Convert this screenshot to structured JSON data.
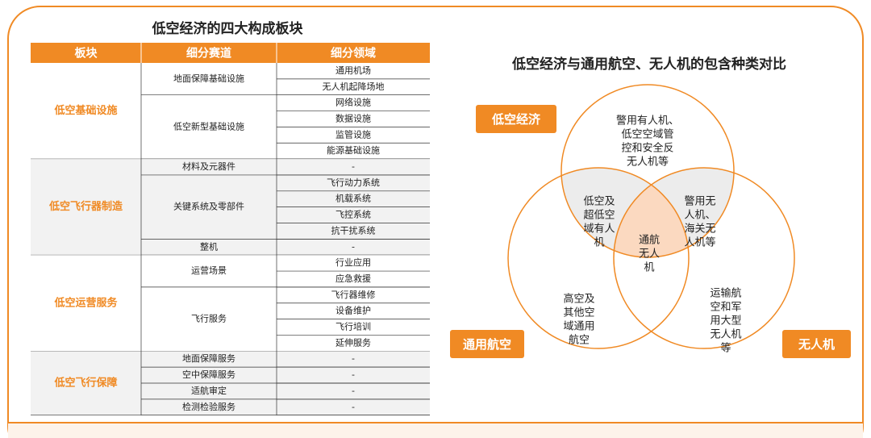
{
  "table_title": "低空经济的四大构成板块",
  "table": {
    "headers": [
      "板块",
      "细分赛道",
      "细分领域"
    ],
    "sections": [
      {
        "name": "低空基础设施",
        "subs": [
          {
            "name": "地面保障基础设施",
            "items": [
              "通用机场",
              "无人机起降场地"
            ]
          },
          {
            "name": "低空新型基础设施",
            "items": [
              "网络设施",
              "数据设施",
              "监管设施",
              "能源基础设施"
            ]
          }
        ]
      },
      {
        "name": "低空飞行器制造",
        "subs": [
          {
            "name": "材料及元器件",
            "items": [
              "-"
            ]
          },
          {
            "name": "关键系统及零部件",
            "items": [
              "飞行动力系统",
              "机载系统",
              "飞控系统",
              "抗干扰系统"
            ]
          },
          {
            "name": "整机",
            "items": [
              "-"
            ]
          }
        ]
      },
      {
        "name": "低空运营服务",
        "subs": [
          {
            "name": "运营场景",
            "items": [
              "行业应用",
              "应急救援"
            ]
          },
          {
            "name": "飞行服务",
            "items": [
              "飞行器维修",
              "设备维护",
              "飞行培训",
              "延伸服务"
            ]
          }
        ]
      },
      {
        "name": "低空飞行保障",
        "subs": [
          {
            "name": "地面保障服务",
            "items": [
              "-"
            ]
          },
          {
            "name": "空中保障服务",
            "items": [
              "-"
            ]
          },
          {
            "name": "适航审定",
            "items": [
              "-"
            ]
          },
          {
            "name": "检测检验服务",
            "items": [
              "-"
            ]
          }
        ]
      }
    ]
  },
  "venn_title": "低空经济与通用航空、无人机的包含种类对比",
  "venn": {
    "sets": [
      "低空经济",
      "通用航空",
      "无人机"
    ],
    "regions": [
      {
        "lines": [
          "警用有人机、",
          "低空空域管",
          "控和安全反",
          "无人机等"
        ]
      },
      {
        "lines": [
          "低空及",
          "超低空",
          "域有人",
          "机"
        ]
      },
      {
        "lines": [
          "警用无",
          "人机、",
          "海关无",
          "人机等"
        ]
      },
      {
        "lines": [
          "通航",
          "无人",
          "机"
        ]
      },
      {
        "lines": [
          "高空及",
          "其他空",
          "域通用",
          "航空"
        ]
      },
      {
        "lines": [
          "运输航",
          "空和军",
          "用大型",
          "无人机",
          "等"
        ]
      }
    ]
  }
}
